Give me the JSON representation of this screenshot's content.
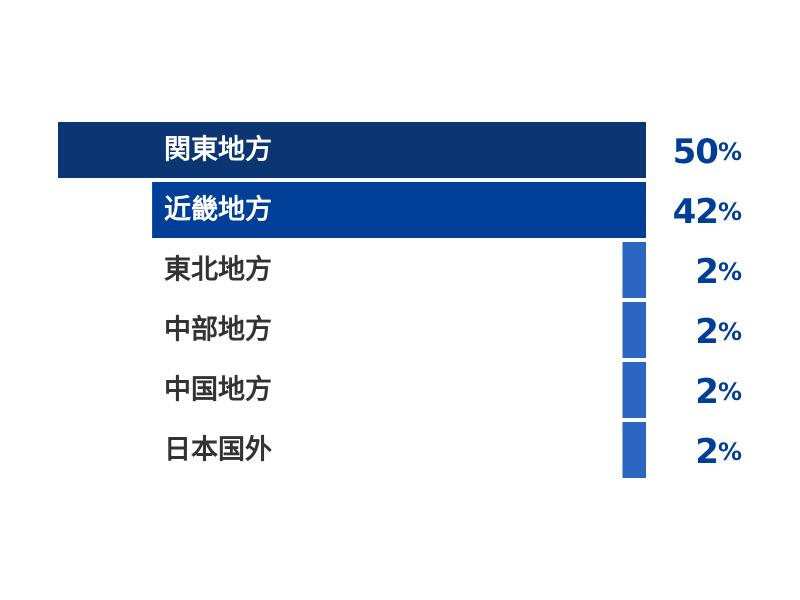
{
  "chart_data": {
    "type": "bar",
    "orientation": "horizontal",
    "categories": [
      "関東地方",
      "近畿地方",
      "東北地方",
      "中部地方",
      "中国地方",
      "日本国外"
    ],
    "values": [
      50,
      42,
      2,
      2,
      2,
      2
    ],
    "unit": "%",
    "title": "",
    "xlabel": "",
    "ylabel": "",
    "xlim": [
      0,
      50
    ],
    "grid": false,
    "legend": "none",
    "colors": {
      "bars": [
        "#0b3673",
        "#003f98",
        "#2a66c2",
        "#2a66c2",
        "#2a66c2",
        "#2a66c2"
      ],
      "label_on_bar": "#ffffff",
      "label_off_bar": "#333333",
      "value_text": "#003f98"
    }
  }
}
